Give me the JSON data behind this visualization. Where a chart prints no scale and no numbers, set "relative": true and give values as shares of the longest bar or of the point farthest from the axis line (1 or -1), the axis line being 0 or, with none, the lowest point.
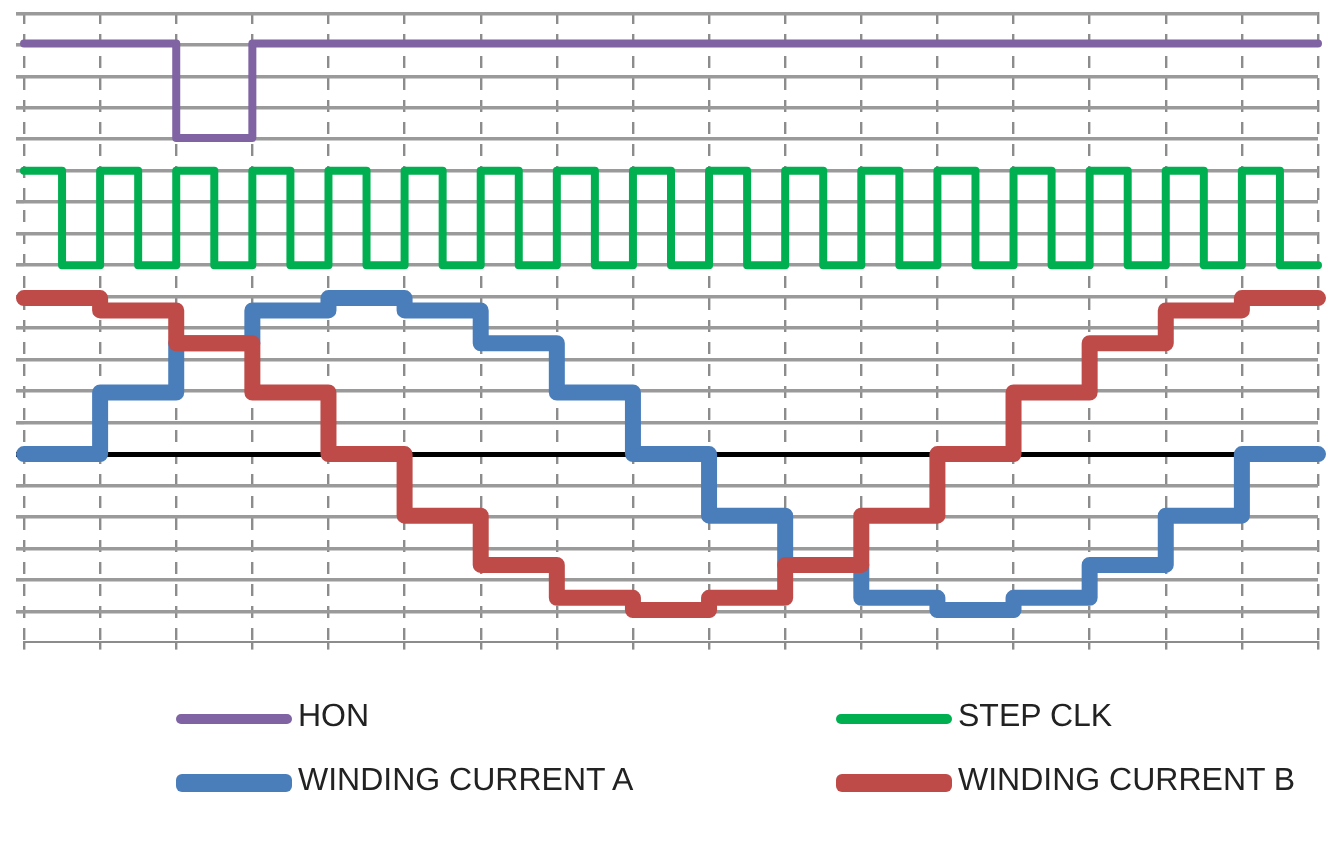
{
  "chart_data": {
    "type": "step",
    "relative": true,
    "marker": "none",
    "grid": true,
    "legend": "bottom",
    "categories": [
      null,
      null,
      null,
      null,
      null,
      null,
      null,
      null,
      null,
      null,
      null,
      null,
      null,
      null,
      null,
      null,
      null,
      null,
      null,
      null,
      null,
      null,
      null,
      null,
      null,
      null,
      null,
      null,
      null,
      null,
      null,
      null,
      null,
      null,
      null
    ],
    "series": [
      {
        "name": "HON",
        "color": "#7f63a2",
        "values": [
          1,
          1,
          1,
          1,
          0.77,
          0.77,
          1,
          1,
          1,
          1,
          1,
          1,
          1,
          1,
          1,
          1,
          1,
          1,
          1,
          1,
          1,
          1,
          1,
          1,
          1,
          1,
          1,
          1,
          1,
          1,
          1,
          1,
          1,
          1,
          1
        ]
      },
      {
        "name": "STEP CLK",
        "color": "#00b050",
        "values": [
          0.69,
          0.46,
          0.69,
          0.46,
          0.69,
          0.46,
          0.69,
          0.46,
          0.69,
          0.46,
          0.69,
          0.46,
          0.69,
          0.46,
          0.69,
          0.46,
          0.69,
          0.46,
          0.69,
          0.46,
          0.69,
          0.46,
          0.69,
          0.46,
          0.69,
          0.46,
          0.69,
          0.46,
          0.69,
          0.46,
          0.69,
          0.46,
          0.69,
          0.46,
          0.46
        ]
      },
      {
        "name": "WINDING CURRENT A",
        "color": "#4a7ebb",
        "values": [
          0,
          0,
          0.15,
          0.15,
          0.27,
          null,
          0.35,
          0.35,
          0.38,
          0.38,
          0.35,
          0.35,
          0.27,
          0.27,
          0.15,
          0.15,
          0,
          0,
          -0.15,
          -0.15,
          -0.27,
          -0.27,
          -0.35,
          -0.35,
          -0.38,
          -0.38,
          -0.35,
          -0.35,
          -0.27,
          -0.27,
          -0.15,
          -0.15,
          0,
          0,
          0
        ]
      },
      {
        "name": "WINDING CURRENT B",
        "color": "#be4b48",
        "values": [
          0.38,
          0.38,
          0.35,
          0.35,
          0.27,
          0.27,
          0.15,
          0.15,
          0,
          0,
          -0.15,
          -0.15,
          -0.27,
          -0.27,
          -0.35,
          -0.35,
          -0.38,
          -0.38,
          -0.35,
          -0.35,
          -0.27,
          -0.27,
          -0.15,
          -0.15,
          0,
          0,
          0.15,
          0.15,
          0.27,
          0.27,
          0.35,
          0.35,
          0.38,
          0.38,
          0.38
        ]
      }
    ]
  }
}
